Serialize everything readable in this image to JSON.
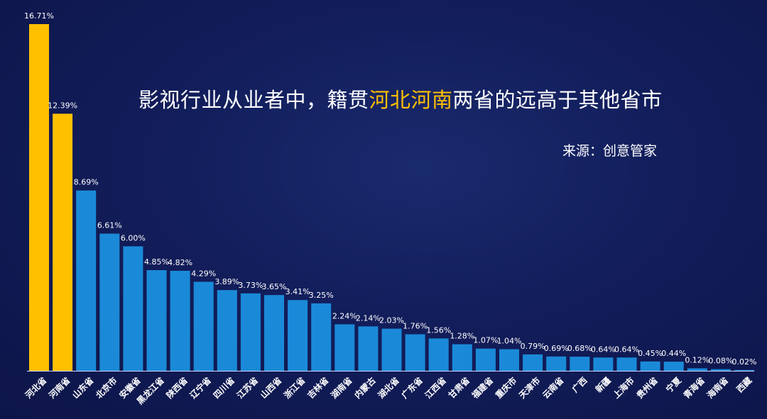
{
  "title": {
    "prefix": "影视行业从业者中，籍贯",
    "highlight": "河北河南",
    "suffix": "两省的远高于其他省市"
  },
  "source": "来源：创意管家",
  "colors": {
    "highlight": "#ffc000",
    "bar": "#1a8ad8",
    "background": "#121d5a"
  },
  "chart_data": {
    "type": "bar",
    "title": "影视行业从业者中，籍贯河北河南两省的远高于其他省市",
    "categories": [
      "河北省",
      "河南省",
      "山东省",
      "北京市",
      "安徽省",
      "黑龙江省",
      "陕西省",
      "辽宁省",
      "四川省",
      "江苏省",
      "山西省",
      "浙江省",
      "吉林省",
      "湖南省",
      "内蒙古",
      "湖北省",
      "广东省",
      "江西省",
      "甘肃省",
      "福建省",
      "重庆市",
      "天津市",
      "云南省",
      "广西",
      "新疆",
      "上海市",
      "贵州省",
      "宁夏",
      "青海省",
      "海南省",
      "西藏"
    ],
    "values": [
      16.71,
      12.39,
      8.69,
      6.61,
      6.0,
      4.85,
      4.82,
      4.29,
      3.89,
      3.73,
      3.65,
      3.41,
      3.25,
      2.24,
      2.14,
      2.03,
      1.76,
      1.56,
      1.28,
      1.07,
      1.04,
      0.79,
      0.69,
      0.68,
      0.64,
      0.64,
      0.45,
      0.44,
      0.12,
      0.08,
      0.02
    ],
    "value_labels": [
      "16.71%",
      "12.39%",
      "8.69%",
      "6.61%",
      "6.00%",
      "4.85%",
      "4.82%",
      "4.29%",
      "3.89%",
      "3.73%",
      "3.65%",
      "3.41%",
      "3.25%",
      "2.24%",
      "2.14%",
      "2.03%",
      "1.76%",
      "1.56%",
      "1.28%",
      "1.07%",
      "1.04%",
      "0.79%",
      "0.69%",
      "0.68%",
      "0.64%",
      "0.64%",
      "0.45%",
      "0.44%",
      "0.12%",
      "0.08%",
      "0.02%"
    ],
    "highlight_count": 2,
    "ylim": [
      0,
      16.71
    ],
    "grid": false,
    "legend": "none"
  }
}
